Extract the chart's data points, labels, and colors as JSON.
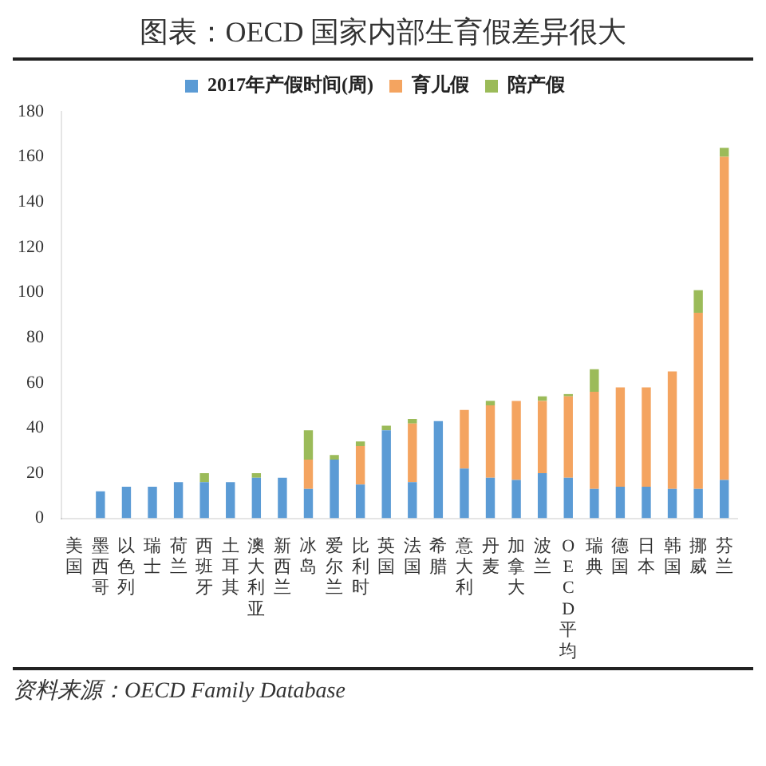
{
  "chart_data": {
    "type": "bar",
    "title": "图表：OECD 国家内部生育假差异很大",
    "stacked": true,
    "legend": "top",
    "categories": [
      "美国",
      "墨西哥",
      "以色列",
      "瑞士",
      "荷兰",
      "西班牙",
      "土耳其",
      "澳大利亚",
      "新西兰",
      "冰岛",
      "爱尔兰",
      "比利时",
      "英国",
      "法国",
      "希腊",
      "意大利",
      "丹麦",
      "加拿大",
      "波兰",
      "OECD平均",
      "瑞典",
      "德国",
      "日本",
      "韩国",
      "挪威",
      "芬兰"
    ],
    "series": [
      {
        "name": "2017年产假时间(周)",
        "color": "#5b9bd5",
        "values": [
          0,
          12,
          14,
          14,
          16,
          16,
          16,
          18,
          18,
          13,
          26,
          15,
          39,
          16,
          43,
          22,
          18,
          17,
          20,
          18,
          13,
          14,
          14,
          13,
          13,
          17
        ]
      },
      {
        "name": "育儿假",
        "color": "#f4a460",
        "values": [
          0,
          0,
          0,
          0,
          0,
          0,
          0,
          0,
          0,
          13,
          0,
          17,
          0,
          26,
          0,
          26,
          32,
          35,
          32,
          36,
          43,
          44,
          44,
          52,
          78,
          143
        ]
      },
      {
        "name": "陪产假",
        "color": "#9bbb59",
        "values": [
          0,
          0,
          0,
          0,
          0,
          4,
          0,
          2,
          0,
          13,
          2,
          2,
          2,
          2,
          0,
          0,
          2,
          0,
          2,
          1,
          10,
          0,
          0,
          0,
          10,
          4
        ]
      }
    ],
    "ylim": [
      0,
      180
    ],
    "yticks": [
      0,
      20,
      40,
      60,
      80,
      100,
      120,
      140,
      160,
      180
    ],
    "grid": false,
    "annotations": [
      "资料来源：OECD Family Database"
    ]
  }
}
